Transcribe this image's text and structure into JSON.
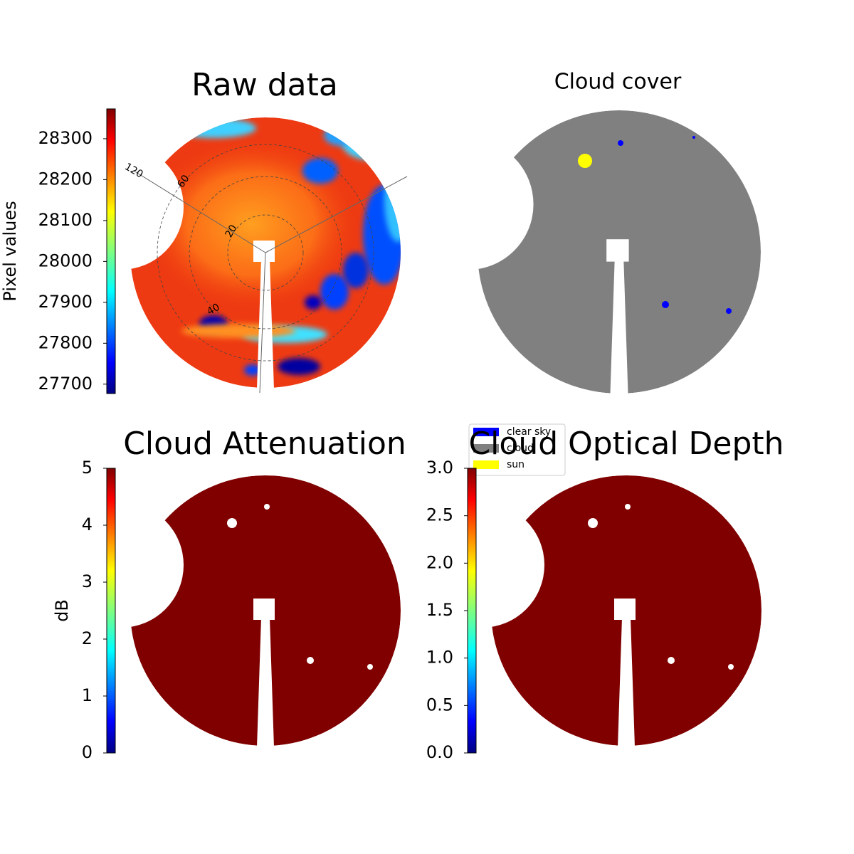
{
  "chart_data": [
    {
      "type": "image",
      "title": "Raw data",
      "colorbar": {
        "label": "Pixel values",
        "ylim": [
          27677,
          28373
        ],
        "yticks": [
          27700,
          27800,
          27900,
          28000,
          28100,
          28200,
          28300
        ]
      },
      "ring_labels": [
        "20",
        "40",
        "60"
      ],
      "azimuth_labels": [
        "120"
      ]
    },
    {
      "type": "image",
      "title": "Cloud cover",
      "series": [
        {
          "name": "clear sky",
          "color": "#0000ff"
        },
        {
          "name": "cloud",
          "color": "#808080"
        },
        {
          "name": "sun",
          "color": "#ffff00"
        }
      ]
    },
    {
      "type": "image",
      "title": "Cloud Attenuation",
      "color": "#800000",
      "colorbar": {
        "label": "dB",
        "ylim": [
          0,
          5
        ],
        "yticks": [
          0,
          1,
          2,
          3,
          4,
          5
        ]
      }
    },
    {
      "type": "image",
      "title": "Cloud Optical Depth",
      "color": "#800000",
      "colorbar": {
        "ylim": [
          0,
          3
        ],
        "yticks": [
          {
            "value": 0,
            "label": "0.0"
          },
          {
            "value": 0.5,
            "label": "0.5"
          },
          {
            "value": 1,
            "label": "1.0"
          },
          {
            "value": 1.5,
            "label": "1.5"
          },
          {
            "value": 2,
            "label": "2.0"
          },
          {
            "value": 2.5,
            "label": "2.5"
          },
          {
            "value": 3,
            "label": "3.0"
          }
        ]
      }
    }
  ]
}
